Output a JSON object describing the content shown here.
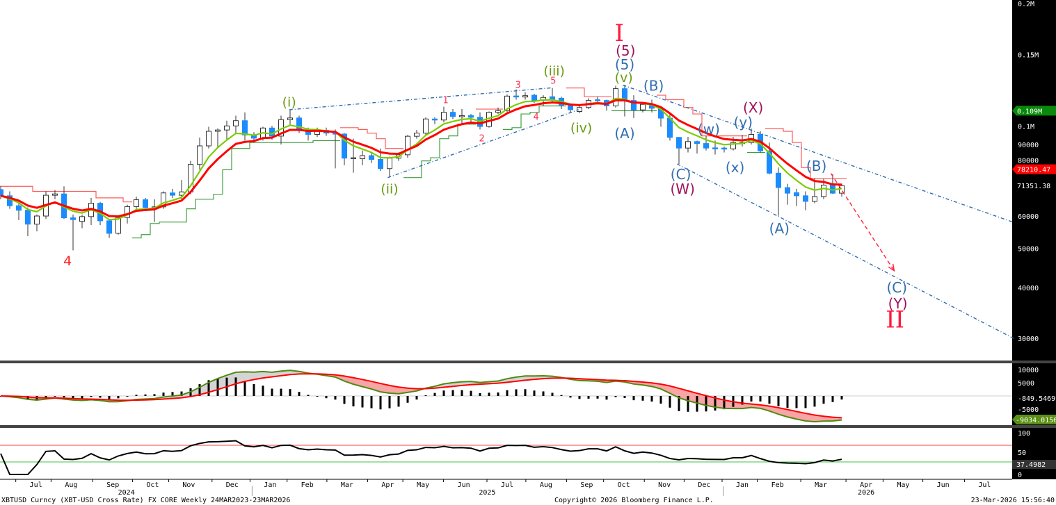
{
  "chart_data": {
    "type": "candlestick",
    "title": "XBTUSD Curncy (XBT-USD Cross Rate) FX CORE Weekly 24MAR2023-23MAR2026",
    "copyright": "Copyright© 2026 Bloomberg Finance L.P.",
    "timestamp": "23-Mar-2026 15:56:40",
    "price_unit": "USD thousands",
    "y_scale": "log",
    "price_ticks": [
      {
        "label": "0.2M",
        "value": 200
      },
      {
        "label": "0.15M",
        "value": 150
      },
      {
        "label": "0.1M",
        "value": 100
      },
      {
        "label": "90000",
        "value": 90
      },
      {
        "label": "80000",
        "value": 80
      },
      {
        "label": "60000",
        "value": 60
      },
      {
        "label": "50000",
        "value": 50
      },
      {
        "label": "40000",
        "value": 40
      },
      {
        "label": "30000",
        "value": 30
      }
    ],
    "price_tags": [
      {
        "label": "0.109M",
        "value": 109,
        "color": "#0a8a0a"
      },
      {
        "label": "78210.47",
        "value": 78.21047,
        "color": "#ff0000"
      },
      {
        "label": "71351.38",
        "value": 71.35138,
        "color": "#000000"
      }
    ],
    "months": [
      {
        "label": "Jul",
        "week": 3.9
      },
      {
        "label": "Aug",
        "week": 7.8
      },
      {
        "label": "Sep",
        "week": 12.4
      },
      {
        "label": "Oct",
        "week": 16.8
      },
      {
        "label": "Nov",
        "week": 20.8
      },
      {
        "label": "Dec",
        "week": 25.6
      },
      {
        "label": "Jan",
        "week": 29.8
      },
      {
        "label": "Feb",
        "week": 33.9
      },
      {
        "label": "Mar",
        "week": 38.3
      },
      {
        "label": "Apr",
        "week": 42.8
      },
      {
        "label": "May",
        "week": 46.7
      },
      {
        "label": "Jun",
        "week": 51.2
      },
      {
        "label": "Jul",
        "week": 56.0
      },
      {
        "label": "Aug",
        "week": 60.3
      },
      {
        "label": "Sep",
        "week": 64.8
      },
      {
        "label": "Oct",
        "week": 68.9
      },
      {
        "label": "Nov",
        "week": 73.4
      },
      {
        "label": "Dec",
        "week": 77.8
      },
      {
        "label": "Jan",
        "week": 82.0
      },
      {
        "label": "Feb",
        "week": 85.9
      },
      {
        "label": "Mar",
        "week": 90.7
      },
      {
        "label": "Apr",
        "week": 95.7
      },
      {
        "label": "May",
        "week": 99.8
      },
      {
        "label": "Jun",
        "week": 104.2
      },
      {
        "label": "Jul",
        "week": 108.8
      }
    ],
    "years": [
      {
        "label": "2024",
        "week": 13.9
      },
      {
        "label": "2025",
        "week": 53.8
      },
      {
        "label": "2026",
        "week": 95.7
      }
    ],
    "year_breaks": [
      27.8,
      79.9
    ],
    "ohlc": [
      [
        69.7,
        71,
        66,
        67.3
      ],
      [
        67.3,
        69,
        62.5,
        63.6
      ],
      [
        63.6,
        65,
        58.6,
        62
      ],
      [
        62,
        63,
        53.5,
        57.3
      ],
      [
        57.3,
        60.5,
        55,
        60
      ],
      [
        60,
        69,
        59,
        67.5
      ],
      [
        67.5,
        69.5,
        66,
        68
      ],
      [
        68,
        71,
        59,
        59.4
      ],
      [
        59.4,
        60.5,
        49.4,
        58.8
      ],
      [
        58.2,
        60.5,
        56,
        59.8
      ],
      [
        59.8,
        66.5,
        57,
        64.5
      ],
      [
        64.5,
        65,
        57,
        58.4
      ],
      [
        58.4,
        59,
        53,
        54.4
      ],
      [
        54.4,
        60,
        54,
        59.5
      ],
      [
        59.5,
        64,
        57.5,
        63.3
      ],
      [
        63.3,
        67,
        62.5,
        65.8
      ],
      [
        65.8,
        66.5,
        62.5,
        63
      ],
      [
        63,
        66,
        58,
        63.2
      ],
      [
        63.2,
        69,
        62.5,
        68.4
      ],
      [
        68.4,
        70,
        66.5,
        67.5
      ],
      [
        67.5,
        73.6,
        66,
        68.8
      ],
      [
        68.8,
        82,
        67.9,
        80.4
      ],
      [
        80.4,
        93.6,
        78,
        89.3
      ],
      [
        89.3,
        99.5,
        88,
        97
      ],
      [
        97,
        98.6,
        88,
        97.7
      ],
      [
        97.7,
        103,
        92,
        100
      ],
      [
        100,
        106,
        96,
        103
      ],
      [
        103,
        108,
        92,
        95
      ],
      [
        95,
        96.5,
        91,
        93.3
      ],
      [
        93.3,
        99.5,
        92,
        98.8
      ],
      [
        98.8,
        100,
        92.5,
        94.4
      ],
      [
        94.4,
        106,
        90,
        103.6
      ],
      [
        103.6,
        109.6,
        100,
        104.6
      ],
      [
        104.6,
        106,
        96,
        97.7
      ],
      [
        97.7,
        99,
        92,
        95.3
      ],
      [
        95.3,
        99,
        94,
        97.5
      ],
      [
        97.5,
        99,
        94.5,
        96
      ],
      [
        96,
        98,
        78.6,
        95.5
      ],
      [
        95.5,
        96,
        80,
        83.3
      ],
      [
        83.3,
        93,
        76.7,
        83.5
      ],
      [
        83,
        87,
        80,
        84.5
      ],
      [
        84.5,
        86,
        81,
        82.7
      ],
      [
        82.7,
        88,
        77.5,
        78.5
      ],
      [
        78.5,
        84,
        74.6,
        83.3
      ],
      [
        83.3,
        86,
        82,
        84.9
      ],
      [
        84.9,
        95,
        83.5,
        94.3
      ],
      [
        94.3,
        97.7,
        93,
        96
      ],
      [
        96,
        105,
        94.5,
        104
      ],
      [
        104,
        105,
        101,
        103.4
      ],
      [
        103.4,
        111.5,
        102,
        108
      ],
      [
        108,
        110,
        104,
        105.5
      ],
      [
        105.5,
        110,
        101,
        106
      ],
      [
        106,
        107,
        102,
        105
      ],
      [
        105,
        108,
        98,
        99.7
      ],
      [
        99.7,
        108.5,
        99,
        108
      ],
      [
        108,
        111,
        107,
        109
      ],
      [
        109,
        119.5,
        108,
        118.4
      ],
      [
        118.5,
        123,
        116,
        118.2
      ],
      [
        117.8,
        121,
        116,
        118.7
      ],
      [
        119,
        120,
        114,
        115.5
      ],
      [
        115.5,
        119,
        112,
        117.5
      ],
      [
        118,
        124,
        115,
        116
      ],
      [
        117,
        118,
        110,
        112.5
      ],
      [
        112.5,
        113,
        108,
        109.6
      ],
      [
        108.5,
        112,
        107.5,
        111
      ],
      [
        111,
        117,
        110,
        115.5
      ],
      [
        116,
        118,
        114,
        115.5
      ],
      [
        115.5,
        116,
        109,
        112
      ],
      [
        112,
        125.5,
        111,
        123.5
      ],
      [
        123.5,
        126.2,
        105.5,
        115.5
      ],
      [
        115.5,
        119,
        104.6,
        109.5
      ],
      [
        109.5,
        114,
        108,
        113
      ],
      [
        113,
        116,
        108,
        110.5
      ],
      [
        110.5,
        111,
        99.5,
        104.5
      ],
      [
        104.5,
        107,
        92,
        93.7
      ],
      [
        93.7,
        94,
        80.6,
        88.2
      ],
      [
        88.2,
        94,
        86,
        91.5
      ],
      [
        91.5,
        92,
        85.5,
        90.5
      ],
      [
        90.5,
        94.5,
        87,
        88.2
      ],
      [
        88.3,
        92,
        85,
        88
      ],
      [
        88.2,
        89,
        86,
        87.8
      ],
      [
        87.8,
        94,
        87,
        91
      ],
      [
        90.5,
        95,
        89,
        91
      ],
      [
        91,
        98.5,
        90,
        95.3
      ],
      [
        95.3,
        97,
        86,
        86.8
      ],
      [
        86.8,
        91,
        76,
        76.5
      ],
      [
        76.5,
        79,
        60.1,
        70.5
      ],
      [
        70.5,
        72,
        64,
        68.3
      ],
      [
        68.5,
        70,
        63.5,
        67.3
      ],
      [
        67.3,
        69,
        62,
        65.2
      ],
      [
        65.2,
        74.3,
        64.5,
        67
      ],
      [
        67,
        74,
        66,
        71.5
      ],
      [
        71.5,
        76,
        68,
        68.3
      ],
      [
        68.3,
        72,
        67,
        71.3
      ]
    ],
    "moving_averages": [
      {
        "name": "fast",
        "period": 5,
        "color": "#7ccc00"
      },
      {
        "name": "slow",
        "period": 8,
        "color": "#ff0000"
      }
    ],
    "trendlines": [
      {
        "name": "wedge-upper",
        "from": [
          31.9,
          109.6
        ],
        "to": [
          60.8,
          124
        ],
        "color": "#2f6db0"
      },
      {
        "name": "wedge-lower",
        "from": [
          42.8,
          74.6
        ],
        "to": [
          63.9,
          109.6
        ],
        "color": "#2f6db0"
      },
      {
        "name": "channel-upper",
        "from": [
          68.8,
          126
        ],
        "to": [
          112,
          57.9
        ],
        "color": "#2f6db0"
      },
      {
        "name": "channel-lower",
        "from": [
          74.8,
          80.6
        ],
        "to": [
          112,
          30
        ],
        "color": "#2f6db0"
      },
      {
        "name": "projection-arrow",
        "from": [
          91.8,
          76.4
        ],
        "to": [
          98.8,
          44
        ],
        "color": "#ff2040"
      }
    ],
    "annotations": [
      {
        "text": "4",
        "week": 7.4,
        "price": 46.6,
        "color": "#ff1a1a",
        "size": "m"
      },
      {
        "text": "(i)",
        "week": 31.9,
        "price": 114.5,
        "color": "#6a9a12",
        "size": "m"
      },
      {
        "text": "(ii)",
        "week": 43,
        "price": 70,
        "color": "#6a9a12",
        "size": "m"
      },
      {
        "text": "(iii)",
        "week": 61.2,
        "price": 136.6,
        "color": "#6a9a12",
        "size": "m"
      },
      {
        "text": "(iv)",
        "week": 64.2,
        "price": 98.9,
        "color": "#6a9a12",
        "size": "m"
      },
      {
        "text": "(v)",
        "week": 68.9,
        "price": 131.8,
        "color": "#6a9a12",
        "size": "m"
      },
      {
        "text": "1",
        "week": 49.2,
        "price": 115.8,
        "color": "#ff3050",
        "size": "s"
      },
      {
        "text": "2",
        "week": 53.2,
        "price": 93.3,
        "color": "#ff3050",
        "size": "s"
      },
      {
        "text": "3",
        "week": 57.2,
        "price": 126.3,
        "color": "#ff3050",
        "size": "s"
      },
      {
        "text": "4",
        "week": 59.2,
        "price": 105.3,
        "color": "#ff3050",
        "size": "s"
      },
      {
        "text": "5",
        "week": 61.1,
        "price": 129.3,
        "color": "#ff3050",
        "size": "s"
      },
      {
        "text": "(5)",
        "week": 69,
        "price": 141.6,
        "color": "#2f6db0",
        "size": "l"
      },
      {
        "text": "(5)",
        "week": 69.1,
        "price": 153,
        "color": "#a0105a",
        "size": "l"
      },
      {
        "text": "I",
        "week": 68.4,
        "price": 169.7,
        "color": "#ff1a3c",
        "size": "xl"
      },
      {
        "text": "(A)",
        "week": 69,
        "price": 95.8,
        "color": "#2f6db0",
        "size": "l"
      },
      {
        "text": "(B)",
        "week": 72.2,
        "price": 125.5,
        "color": "#2f6db0",
        "size": "l"
      },
      {
        "text": "(C)",
        "week": 75.2,
        "price": 76,
        "color": "#2f6db0",
        "size": "l"
      },
      {
        "text": "(W)",
        "week": 75.4,
        "price": 70,
        "color": "#a0105a",
        "size": "l"
      },
      {
        "text": "(w)",
        "week": 78.3,
        "price": 98.2,
        "color": "#2f6db0",
        "size": "l"
      },
      {
        "text": "(x)",
        "week": 81.2,
        "price": 79,
        "color": "#2f6db0",
        "size": "l"
      },
      {
        "text": "(y)",
        "week": 82.1,
        "price": 102,
        "color": "#2f6db0",
        "size": "l"
      },
      {
        "text": "(X)",
        "week": 83.2,
        "price": 110.9,
        "color": "#a0105a",
        "size": "l"
      },
      {
        "text": "(A)",
        "week": 86.1,
        "price": 55.9,
        "color": "#2f6db0",
        "size": "l"
      },
      {
        "text": "(B)",
        "week": 90.2,
        "price": 79.7,
        "color": "#2f6db0",
        "size": "l"
      },
      {
        "text": "(C)",
        "week": 99.1,
        "price": 40,
        "color": "#2f6db0",
        "size": "l"
      },
      {
        "text": "(Y)",
        "week": 99.2,
        "price": 36.5,
        "color": "#a0105a",
        "size": "l"
      },
      {
        "text": "II",
        "week": 98.9,
        "price": 33.4,
        "color": "#ff1a3c",
        "size": "xl"
      }
    ],
    "macd": {
      "fast": 12,
      "slow": 26,
      "signal": 9,
      "ticks": [
        {
          "label": "10000",
          "value": 10000
        },
        {
          "label": "5000",
          "value": 5000
        },
        {
          "label": "-5000",
          "value": -5000
        }
      ],
      "last_histogram_label": "-849.5469",
      "last_macd_label": "-9034.0156",
      "macd_color": "#4f8a10",
      "signal_color": "#ff0000"
    },
    "rsi": {
      "period": 14,
      "ticks": [
        {
          "label": "100",
          "value": 100
        },
        {
          "label": "50",
          "value": 50
        },
        {
          "label": "0",
          "value": 0
        }
      ],
      "overbought": 70,
      "oversold": 30,
      "last_label": "37.4982"
    },
    "colors": {
      "down_candle": "#1a8cff",
      "up_candle": "#ffffff",
      "axis_bg": "#000000"
    }
  }
}
